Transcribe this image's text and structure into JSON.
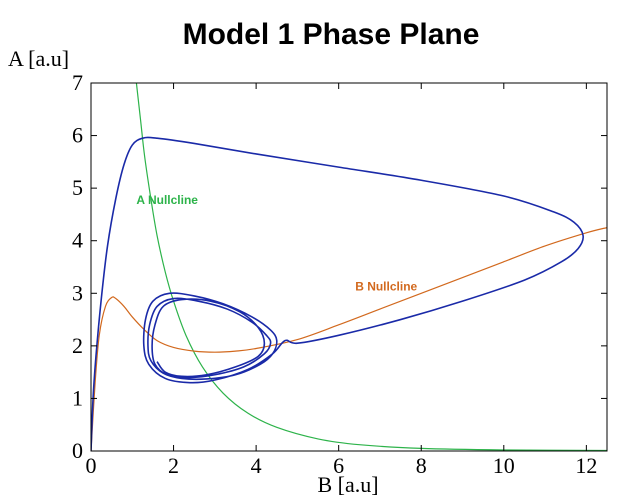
{
  "chart_data": {
    "type": "line",
    "title": "Model 1 Phase Plane",
    "xlabel": "B [a.u]",
    "ylabel": "A [a.u]",
    "xlim": [
      0,
      12.5
    ],
    "ylim": [
      0,
      7
    ],
    "xticks": [
      0,
      2,
      4,
      6,
      8,
      10,
      12
    ],
    "yticks": [
      0,
      1,
      2,
      3,
      4,
      5,
      6,
      7
    ],
    "grid": false,
    "annotations": [
      {
        "text": "A Nullcline",
        "x": 1.1,
        "y": 4.7,
        "color": "#2db34a"
      },
      {
        "text": "B Nullcline",
        "x": 6.4,
        "y": 3.05,
        "color": "#d2691e"
      }
    ],
    "series": [
      {
        "kind": "A-nullcline",
        "color": "#2db34a",
        "x": [
          1.1,
          1.2,
          1.3,
          1.45,
          1.6,
          1.8,
          2.0,
          2.3,
          2.7,
          3.2,
          3.8,
          4.5,
          5.5,
          6.5,
          8.0,
          10.0,
          12.5
        ],
        "y": [
          7.0,
          6.3,
          5.6,
          4.8,
          4.1,
          3.4,
          2.85,
          2.2,
          1.6,
          1.1,
          0.72,
          0.45,
          0.23,
          0.12,
          0.05,
          0.02,
          0.01
        ]
      },
      {
        "kind": "B-nullcline",
        "color": "#d2691e",
        "x": [
          0.0,
          0.1,
          0.2,
          0.35,
          0.5,
          0.6,
          0.8,
          1.0,
          1.3,
          1.6,
          2.0,
          2.5,
          3.0,
          3.5,
          4.0,
          5.0,
          6.0,
          7.0,
          8.0,
          9.0,
          10.0,
          11.0,
          12.0,
          12.5
        ],
        "y": [
          0.0,
          1.3,
          2.2,
          2.75,
          2.92,
          2.9,
          2.75,
          2.55,
          2.3,
          2.1,
          1.97,
          1.9,
          1.88,
          1.9,
          1.95,
          2.12,
          2.4,
          2.7,
          3.0,
          3.3,
          3.6,
          3.9,
          4.15,
          4.25
        ]
      },
      {
        "kind": "trajectory",
        "color": "#1a2aa8",
        "x": [
          0.0,
          0.05,
          0.12,
          0.25,
          0.4,
          0.6,
          0.8,
          1.0,
          1.25,
          1.6,
          2.5,
          4.0,
          6.0,
          8.0,
          10.0,
          11.2,
          11.7,
          11.92,
          11.8,
          11.4,
          10.5,
          9.0,
          7.5,
          6.0,
          5.0,
          4.7,
          4.4,
          3.8,
          3.0,
          2.4,
          1.8,
          1.4,
          1.28,
          1.32,
          1.5,
          1.9,
          2.5,
          3.2,
          3.9,
          4.35,
          4.5,
          4.4,
          4.1,
          3.5,
          2.8,
          2.2,
          1.75,
          1.45,
          1.38,
          1.42,
          1.6,
          2.0,
          2.6,
          3.3,
          3.9,
          4.25,
          4.35,
          4.2,
          3.7,
          3.0,
          2.4,
          1.85,
          1.55,
          1.48,
          1.55,
          1.75,
          2.2,
          2.9,
          3.6,
          4.05,
          4.2,
          4.05,
          3.5,
          2.8,
          2.2,
          1.8,
          1.6
        ],
        "y": [
          0.0,
          1.0,
          1.8,
          2.9,
          3.9,
          4.8,
          5.45,
          5.82,
          5.95,
          5.95,
          5.85,
          5.65,
          5.4,
          5.15,
          4.85,
          4.55,
          4.35,
          4.1,
          3.85,
          3.6,
          3.25,
          2.85,
          2.5,
          2.2,
          2.05,
          2.1,
          1.85,
          1.55,
          1.35,
          1.3,
          1.38,
          1.65,
          2.0,
          2.5,
          2.85,
          3.0,
          2.95,
          2.8,
          2.55,
          2.3,
          2.1,
          1.85,
          1.65,
          1.45,
          1.37,
          1.38,
          1.48,
          1.72,
          2.0,
          2.4,
          2.75,
          2.9,
          2.85,
          2.7,
          2.45,
          2.2,
          2.05,
          1.85,
          1.6,
          1.45,
          1.4,
          1.45,
          1.65,
          2.0,
          2.4,
          2.75,
          2.88,
          2.85,
          2.65,
          2.35,
          2.05,
          1.8,
          1.6,
          1.45,
          1.42,
          1.5,
          1.7
        ]
      }
    ]
  }
}
